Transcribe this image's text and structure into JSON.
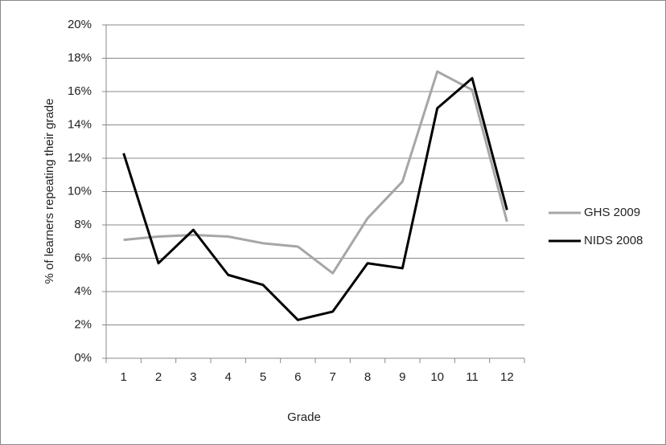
{
  "chart_data": {
    "type": "line",
    "categories": [
      "1",
      "2",
      "3",
      "4",
      "5",
      "6",
      "7",
      "8",
      "9",
      "10",
      "11",
      "12"
    ],
    "series": [
      {
        "name": "GHS 2009",
        "color": "#a6a6a6",
        "values": [
          7.1,
          7.3,
          7.4,
          7.3,
          6.9,
          6.7,
          5.1,
          8.4,
          10.6,
          17.2,
          16.1,
          8.2
        ]
      },
      {
        "name": "NIDS 2008",
        "color": "#000000",
        "values": [
          12.3,
          5.7,
          7.7,
          5.0,
          4.4,
          2.3,
          2.8,
          5.7,
          5.4,
          15.0,
          16.8,
          8.9
        ]
      }
    ],
    "xlabel": "Grade",
    "ylabel": "% of learners repeating their grade",
    "ylim": [
      0,
      20
    ],
    "yticks": [
      {
        "value": 0,
        "label": "0%"
      },
      {
        "value": 2,
        "label": "2%"
      },
      {
        "value": 4,
        "label": "4%"
      },
      {
        "value": 6,
        "label": "6%"
      },
      {
        "value": 8,
        "label": "8%"
      },
      {
        "value": 10,
        "label": "10%"
      },
      {
        "value": 12,
        "label": "12%"
      },
      {
        "value": 14,
        "label": "14%"
      },
      {
        "value": 16,
        "label": "16%"
      },
      {
        "value": 18,
        "label": "18%"
      },
      {
        "value": 20,
        "label": "20%"
      }
    ],
    "grid": true,
    "legend": "right"
  }
}
